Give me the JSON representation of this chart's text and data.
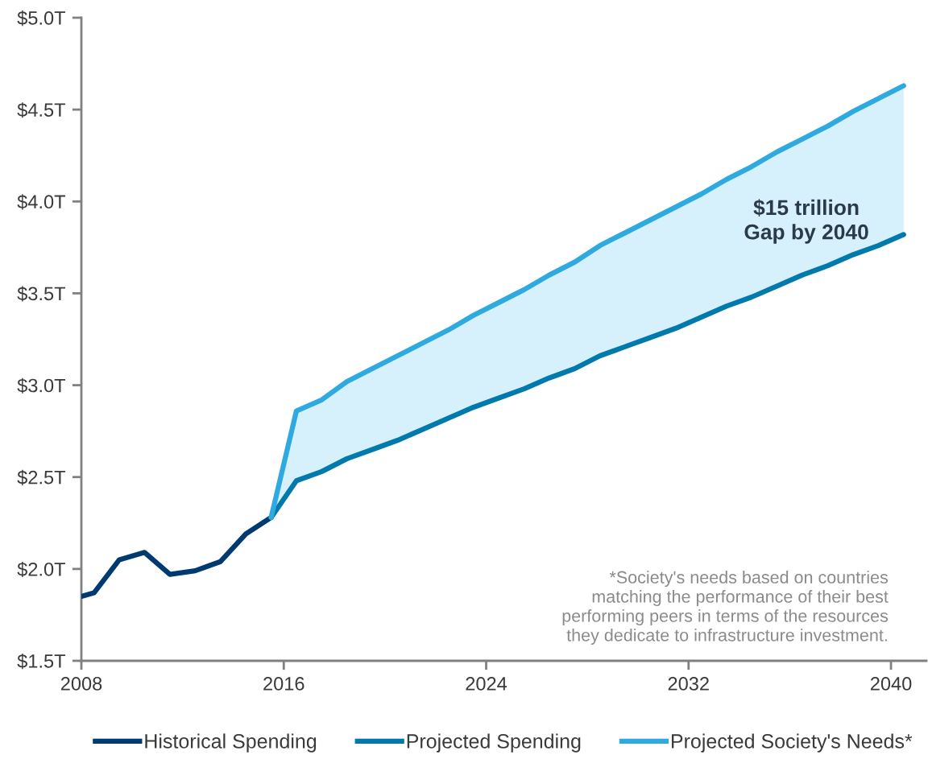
{
  "chart_data": {
    "type": "line",
    "xlim": [
      2008,
      2041.4
    ],
    "ylim": [
      1.5,
      5.0
    ],
    "xticks": [
      2008,
      2016,
      2024,
      2032,
      2040
    ],
    "yticks": [
      {
        "value": 1.5,
        "label": "$1.5T"
      },
      {
        "value": 2.0,
        "label": "$2.0T"
      },
      {
        "value": 2.5,
        "label": "$2.5T"
      },
      {
        "value": 3.0,
        "label": "$3.0T"
      },
      {
        "value": 3.5,
        "label": "$3.5T"
      },
      {
        "value": 4.0,
        "label": "$4.0T"
      },
      {
        "value": 4.5,
        "label": "$4.5T"
      },
      {
        "value": 5.0,
        "label": "$5.0T"
      }
    ],
    "grid": false,
    "legend": "bottom",
    "marker": "none",
    "line_style": "solid",
    "series": [
      {
        "name": "Historical Spending",
        "color": "#003a70",
        "x": [
          2008,
          2008.5,
          2009.5,
          2010.5,
          2011.5,
          2012.5,
          2013.5,
          2014.5,
          2015.5
        ],
        "values": [
          1.85,
          1.87,
          2.05,
          2.09,
          1.97,
          1.99,
          2.04,
          2.19,
          2.28
        ]
      },
      {
        "name": "Projected Spending",
        "color": "#0079ad",
        "x": [
          2015.5,
          2016.5,
          2017.5,
          2018.5,
          2019.5,
          2020.5,
          2021.5,
          2022.5,
          2023.5,
          2024.5,
          2025.5,
          2026.5,
          2027.5,
          2028.5,
          2029.5,
          2030.5,
          2031.5,
          2032.5,
          2033.5,
          2034.5,
          2035.5,
          2036.5,
          2037.5,
          2038.5,
          2039.5,
          2040.5
        ],
        "values": [
          2.28,
          2.48,
          2.53,
          2.6,
          2.65,
          2.7,
          2.76,
          2.82,
          2.88,
          2.93,
          2.98,
          3.04,
          3.09,
          3.16,
          3.21,
          3.26,
          3.31,
          3.37,
          3.43,
          3.48,
          3.54,
          3.6,
          3.65,
          3.71,
          3.76,
          3.82
        ]
      },
      {
        "name": "Projected Society's Needs*",
        "color": "#2eaae1",
        "x": [
          2015.5,
          2016.5,
          2017.5,
          2018.5,
          2019.5,
          2020.5,
          2021.5,
          2022.5,
          2023.5,
          2024.5,
          2025.5,
          2026.5,
          2027.5,
          2028.5,
          2029.5,
          2030.5,
          2031.5,
          2032.5,
          2033.5,
          2034.5,
          2035.5,
          2036.5,
          2037.5,
          2038.5,
          2039.5,
          2040.5
        ],
        "values": [
          2.28,
          2.86,
          2.92,
          3.02,
          3.09,
          3.16,
          3.23,
          3.3,
          3.38,
          3.45,
          3.52,
          3.6,
          3.67,
          3.76,
          3.83,
          3.9,
          3.97,
          4.04,
          4.12,
          4.19,
          4.27,
          4.34,
          4.41,
          4.49,
          4.56,
          4.63
        ],
        "lower": [
          2.28,
          2.48,
          2.53,
          2.6,
          2.65,
          2.7,
          2.76,
          2.82,
          2.88,
          2.93,
          2.98,
          3.04,
          3.09,
          3.16,
          3.21,
          3.26,
          3.31,
          3.37,
          3.43,
          3.48,
          3.54,
          3.6,
          3.65,
          3.71,
          3.76,
          3.82
        ],
        "upper": [
          2.28,
          2.86,
          2.92,
          3.02,
          3.09,
          3.16,
          3.23,
          3.3,
          3.38,
          3.45,
          3.52,
          3.6,
          3.67,
          3.76,
          3.83,
          3.9,
          3.97,
          4.04,
          4.12,
          4.19,
          4.27,
          4.34,
          4.41,
          4.49,
          4.56,
          4.63
        ]
      }
    ],
    "annotations": [
      "$15 trillion\nGap by 2040",
      "*Society's needs based on countries\nmatching the performance of their best\nperforming peers in terms of the resources\nthey dedicate to infrastructure investment."
    ]
  }
}
